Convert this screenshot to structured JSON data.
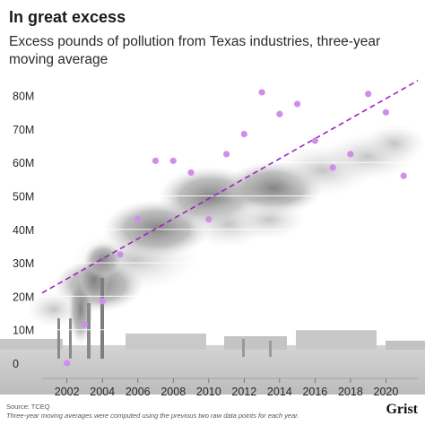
{
  "chart_data": {
    "type": "scatter",
    "title": "In great excess",
    "subtitle": "Excess pounds of pollution from Texas industries, three-year moving average",
    "ylim": [
      0,
      85000000
    ],
    "xlim": [
      2000.6,
      2021.8
    ],
    "y_ticks": [
      0,
      10000000,
      20000000,
      30000000,
      40000000,
      50000000,
      60000000,
      70000000,
      80000000
    ],
    "y_tick_labels": [
      "0",
      "10M",
      "20M",
      "30M",
      "40M",
      "50M",
      "60M",
      "70M",
      "80M"
    ],
    "x_ticks": [
      2002,
      2004,
      2006,
      2008,
      2010,
      2012,
      2014,
      2016,
      2018,
      2020
    ],
    "x_tick_labels": [
      "2002",
      "2004",
      "2006",
      "2008",
      "2010",
      "2012",
      "2014",
      "2016",
      "2018",
      "2020"
    ],
    "series": [
      {
        "color": "#cf8ee8",
        "points": [
          {
            "x": 2002,
            "y": 0
          },
          {
            "x": 2003,
            "y": 11500000
          },
          {
            "x": 2004,
            "y": 18500000
          },
          {
            "x": 2005,
            "y": 32500000
          },
          {
            "x": 2006,
            "y": 43000000
          },
          {
            "x": 2007,
            "y": 60500000
          },
          {
            "x": 2008,
            "y": 60500000
          },
          {
            "x": 2009,
            "y": 57000000
          },
          {
            "x": 2010,
            "y": 43000000
          },
          {
            "x": 2011,
            "y": 62500000
          },
          {
            "x": 2012,
            "y": 68500000
          },
          {
            "x": 2013,
            "y": 81000000
          },
          {
            "x": 2014,
            "y": 74500000
          },
          {
            "x": 2015,
            "y": 77500000
          },
          {
            "x": 2016,
            "y": 66500000
          },
          {
            "x": 2017,
            "y": 58500000
          },
          {
            "x": 2018,
            "y": 62500000
          },
          {
            "x": 2019,
            "y": 80500000
          },
          {
            "x": 2020,
            "y": 75000000
          },
          {
            "x": 2021,
            "y": 56000000
          }
        ]
      }
    ],
    "trendline": {
      "color": "#a020c8",
      "style": "dashed",
      "x": [
        2000.6,
        2021.8
      ],
      "y": [
        21000000,
        84500000
      ]
    },
    "grid": true,
    "background": "industrial smoke photo",
    "colors": {
      "points": "#cf8ee8",
      "trend": "#a020c8",
      "grid": "#ffffff",
      "text": "#2a2a2a"
    }
  },
  "footer": {
    "source": "Source: TCEQ",
    "note": "Three-year moving averages were computed using the previous two raw data points for each year.",
    "logo": "Grist"
  }
}
